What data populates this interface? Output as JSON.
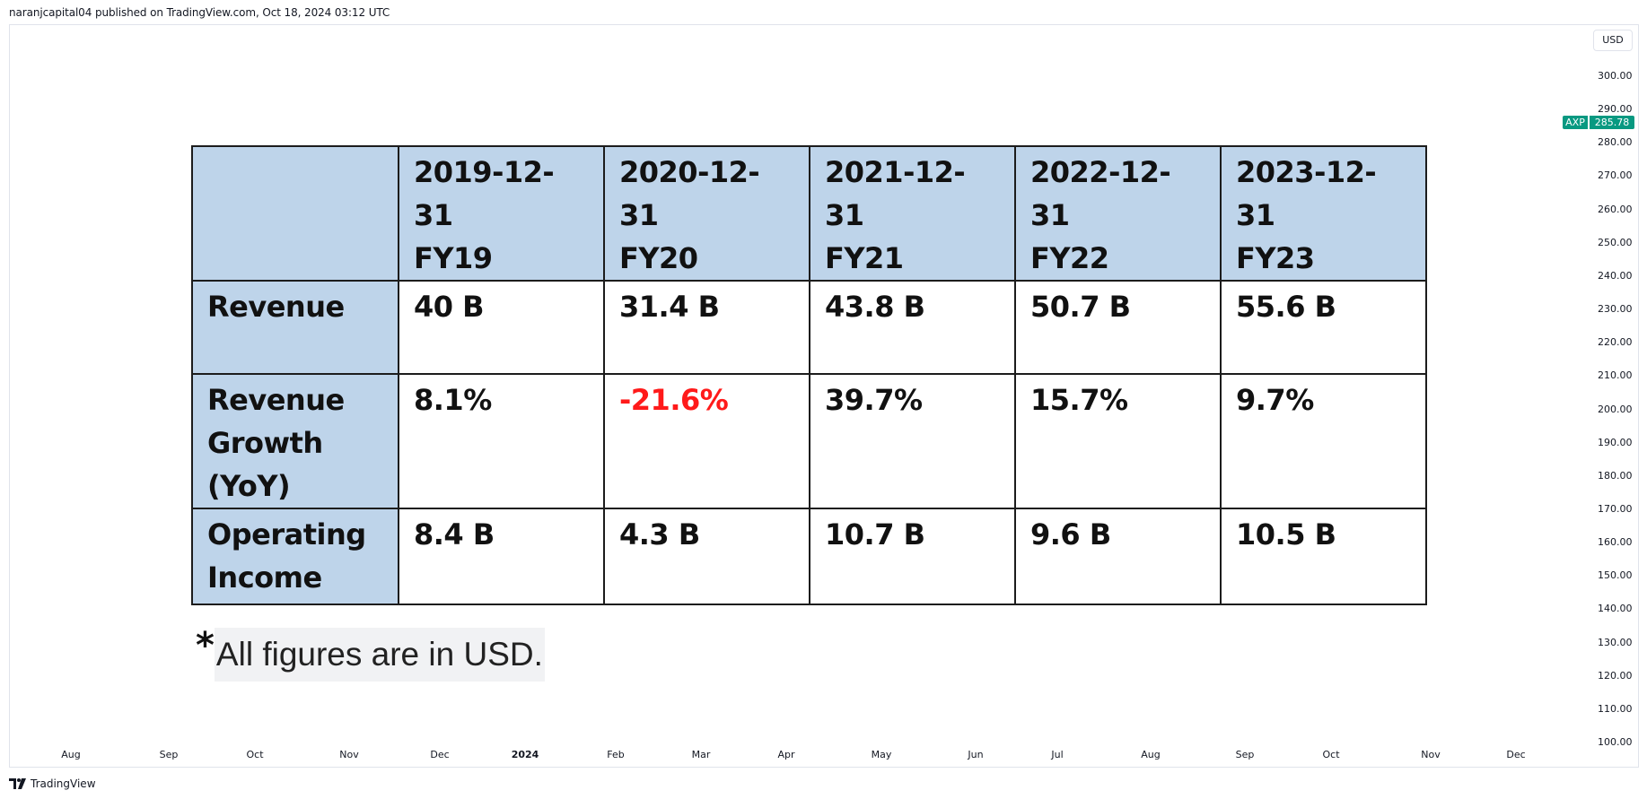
{
  "header": {
    "caption": "naranjcapital04 published on TradingView.com, Oct 18, 2024 03:12 UTC"
  },
  "price_scale": {
    "currency": "USD",
    "ticks": [
      "300.00",
      "290.00",
      "280.00",
      "270.00",
      "260.00",
      "250.00",
      "240.00",
      "230.00",
      "220.00",
      "210.00",
      "200.00",
      "190.00",
      "180.00",
      "170.00",
      "160.00",
      "150.00",
      "140.00",
      "130.00",
      "120.00",
      "110.00",
      "100.00"
    ],
    "badge": {
      "symbol": "AXP",
      "price": "285.78",
      "color": "#089981"
    }
  },
  "time_scale": {
    "ticks": [
      "Aug",
      "Sep",
      "Oct",
      "Nov",
      "Dec",
      "2024",
      "Feb",
      "Mar",
      "Apr",
      "May",
      "Jun",
      "Jul",
      "Aug",
      "Sep",
      "Oct",
      "Nov",
      "Dec"
    ],
    "bold_tick": "2024"
  },
  "table": {
    "header_color": "#bed4ea",
    "negative_color": "#ff1a1a",
    "columns": [
      {
        "date": "2019-12-31",
        "fy": "FY19"
      },
      {
        "date": "2020-12-31",
        "fy": "FY20"
      },
      {
        "date": "2021-12-31",
        "fy": "FY21"
      },
      {
        "date": "2022-12-31",
        "fy": "FY22"
      },
      {
        "date": "2023-12-31",
        "fy": "FY23"
      }
    ],
    "rows": [
      {
        "label_lines": [
          "Revenue"
        ],
        "values": [
          "40 B",
          "31.4 B",
          "43.8 B",
          "50.7 B",
          "55.6 B"
        ]
      },
      {
        "label_lines": [
          "Revenue",
          "Growth",
          "(YoY)"
        ],
        "values": [
          "8.1%",
          "-21.6%",
          "39.7%",
          "15.7%",
          "9.7%"
        ]
      },
      {
        "label_lines": [
          "Operating",
          "Income"
        ],
        "values": [
          "8.4 B",
          "4.3 B",
          "10.7 B",
          "9.6 B",
          "10.5 B"
        ]
      }
    ]
  },
  "footnote": {
    "star": "*",
    "text": "All figures are in USD."
  },
  "footer": {
    "brand": "TradingView",
    "logo_icon": "tradingview-logo-icon"
  }
}
